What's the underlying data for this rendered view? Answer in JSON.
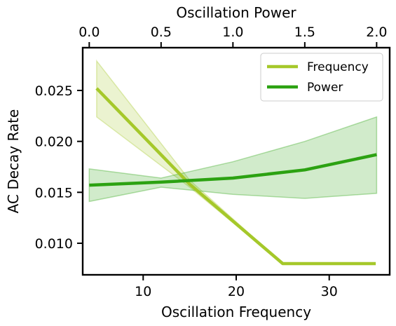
{
  "chart_data": {
    "type": "line",
    "xlabel": "Oscillation Frequency",
    "ylabel": "AC Decay Rate",
    "top_xlabel": "Oscillation Power",
    "xlim": [
      3.5,
      36.5
    ],
    "ylim": [
      0.0069,
      0.0292
    ],
    "top_xlim": [
      -0.0455,
      2.0909
    ],
    "x_ticks": [
      10,
      20,
      30
    ],
    "x_tick_labels": [
      "10",
      "20",
      "30"
    ],
    "y_ticks": [
      0.01,
      0.015,
      0.02,
      0.025
    ],
    "y_tick_labels": [
      "0.010",
      "0.015",
      "0.020",
      "0.025"
    ],
    "top_x_ticks": [
      0.0,
      0.5,
      1.0,
      1.5,
      2.0
    ],
    "top_x_tick_labels": [
      "0.0",
      "0.5",
      "1.0",
      "1.5",
      "2.0"
    ],
    "legend_position": "top-right",
    "grid": false,
    "series": [
      {
        "name": "Frequency",
        "axis": "bottom",
        "color": "#a5c82a",
        "x": [
          5,
          15,
          25,
          35
        ],
        "y": [
          0.0252,
          0.0158,
          0.008,
          0.008
        ],
        "lower": [
          0.0224,
          0.0155,
          0.008,
          0.008
        ],
        "upper": [
          0.0279,
          0.0162,
          0.008,
          0.008
        ]
      },
      {
        "name": "Power",
        "axis": "top",
        "color": "#2ca212",
        "x": [
          0.0,
          0.5,
          1.0,
          1.5,
          2.0
        ],
        "y": [
          0.0157,
          0.016,
          0.0164,
          0.0172,
          0.0187
        ],
        "lower": [
          0.0141,
          0.0155,
          0.0148,
          0.0144,
          0.0149
        ],
        "upper": [
          0.0173,
          0.0164,
          0.018,
          0.02,
          0.0224
        ]
      }
    ]
  }
}
